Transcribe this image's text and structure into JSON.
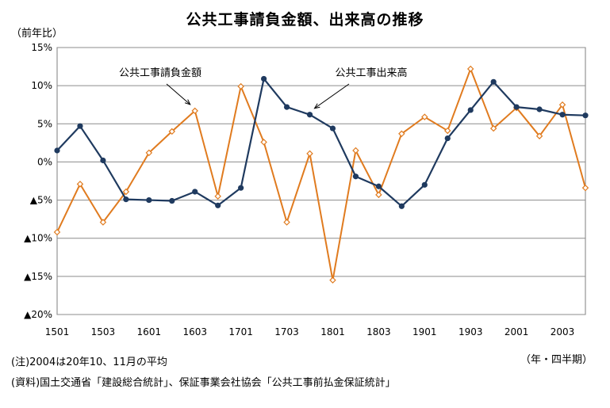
{
  "chart_data": {
    "type": "line",
    "title": "公共工事請負金額、出来高の推移",
    "ylabel": "（前年比）",
    "xlabel": "（年・四半期）",
    "ylim": [
      -20,
      15
    ],
    "y_ticks": [
      15,
      10,
      5,
      0,
      -5,
      -10,
      -15,
      -20
    ],
    "y_tick_labels": [
      "15%",
      "10%",
      "5%",
      "0%",
      "▲5%",
      "▲10%",
      "▲15%",
      "▲20%"
    ],
    "x": [
      "1501",
      "1502",
      "1503",
      "1504",
      "1601",
      "1602",
      "1603",
      "1604",
      "1701",
      "1702",
      "1703",
      "1704",
      "1801",
      "1802",
      "1803",
      "1804",
      "1901",
      "1902",
      "1903",
      "1904",
      "2001",
      "2002",
      "2003",
      "2004"
    ],
    "x_tick_labels": [
      "1501",
      "1503",
      "1601",
      "1603",
      "1701",
      "1703",
      "1801",
      "1803",
      "1901",
      "1903",
      "2001",
      "2003"
    ],
    "grid": true,
    "series": [
      {
        "name": "公共工事請負金額",
        "color": "#e07b1f",
        "marker": "diamond-open",
        "values": [
          -9.2,
          -2.9,
          -7.9,
          -3.9,
          1.2,
          4.0,
          6.7,
          -4.5,
          9.9,
          2.6,
          -7.9,
          1.1,
          -15.5,
          1.5,
          -4.3,
          3.7,
          5.9,
          4.1,
          12.2,
          4.4,
          7.1,
          3.4,
          7.5,
          -3.4
        ]
      },
      {
        "name": "公共工事出来高",
        "color": "#1f3a5f",
        "marker": "circle",
        "values": [
          1.5,
          4.7,
          0.2,
          -4.9,
          -5.0,
          -5.1,
          -3.9,
          -5.7,
          -3.4,
          10.9,
          7.2,
          6.2,
          4.4,
          -1.9,
          -3.2,
          -5.8,
          -3.0,
          3.1,
          6.8,
          10.5,
          7.2,
          6.9,
          6.2,
          6.1
        ]
      }
    ],
    "annotations": [
      {
        "text": "公共工事請負金額",
        "target_series": 0,
        "target_index": 6
      },
      {
        "text": "公共工事出来高",
        "target_series": 1,
        "target_index": 11
      }
    ]
  },
  "note": "(注)2004は20年10、11月の平均",
  "source": "(資料)国土交通省「建設総合統計」、保証事業会社協会「公共工事前払金保証統計」"
}
